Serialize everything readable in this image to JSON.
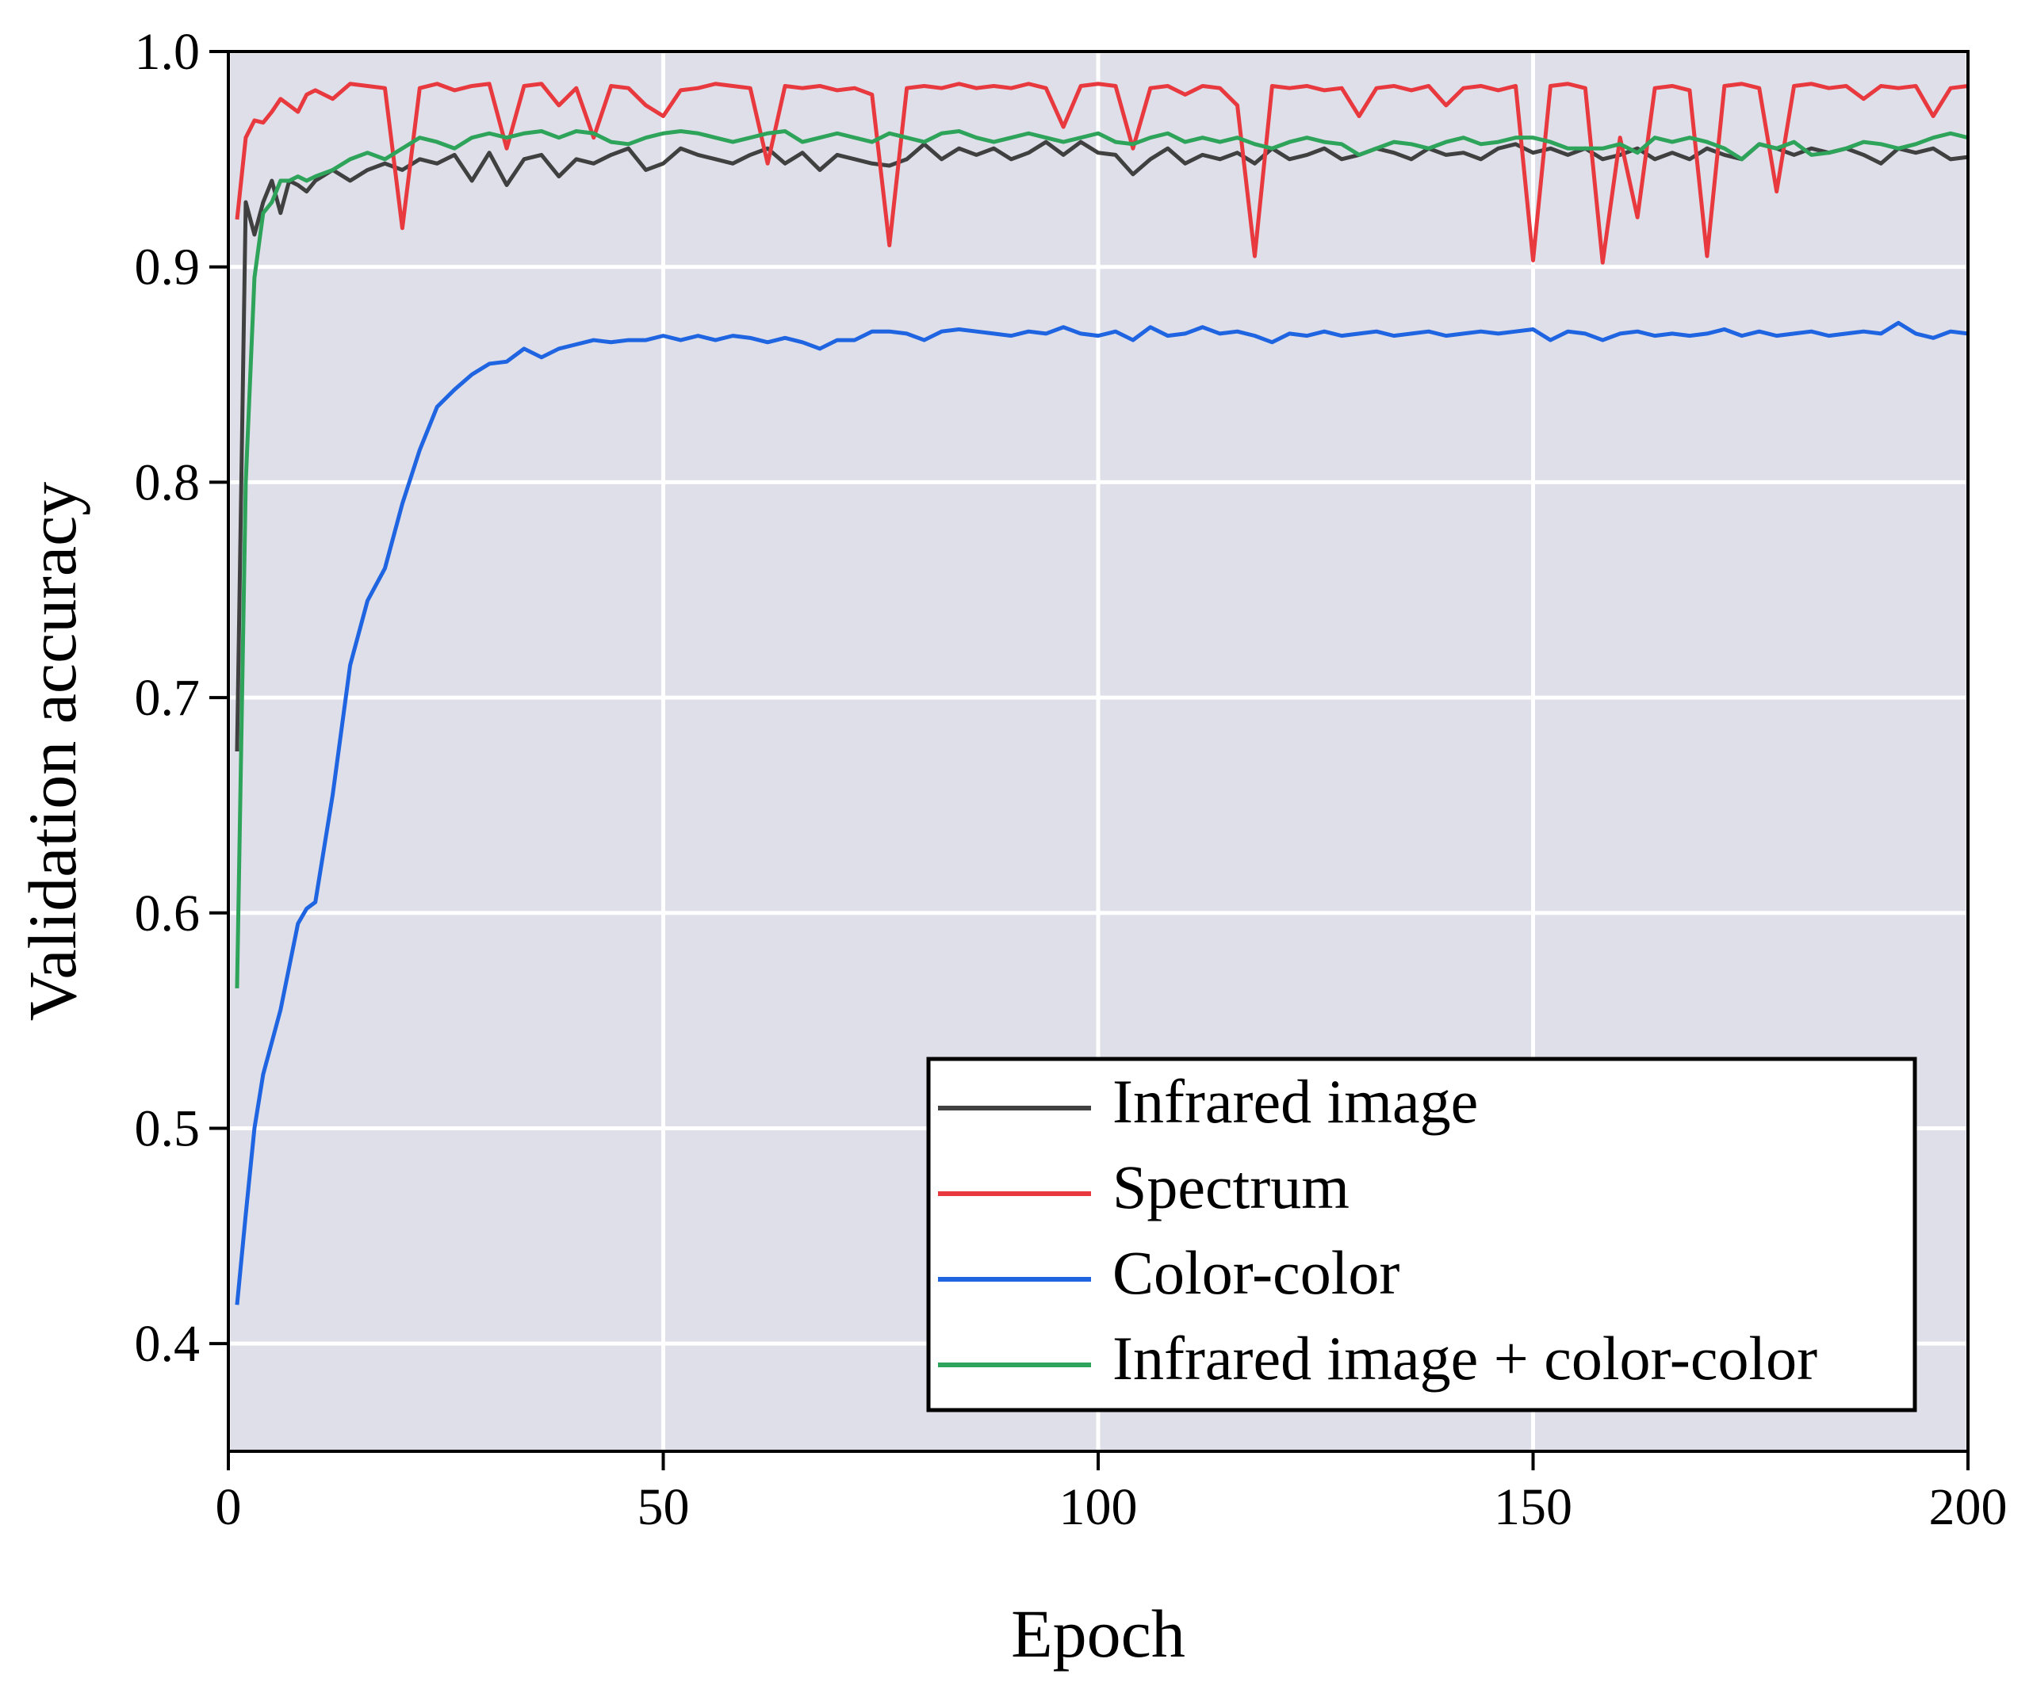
{
  "chart_data": {
    "type": "line",
    "xlabel": "Epoch",
    "ylabel": "Validation accuracy",
    "xlim": [
      0,
      200
    ],
    "xticks": [
      0,
      50,
      100,
      150,
      200
    ],
    "ylim": [
      0.35,
      1.0
    ],
    "yticks": [
      0.4,
      0.5,
      0.6,
      0.7,
      0.8,
      0.9,
      {
        "value": 1,
        "label": "1.0"
      }
    ],
    "grid": true,
    "legend": "lower right",
    "background": "#dfdfea",
    "x": [
      1,
      2,
      3,
      4,
      5,
      6,
      7,
      8,
      9,
      10,
      12,
      14,
      16,
      18,
      20,
      22,
      24,
      26,
      28,
      30,
      32,
      34,
      36,
      38,
      40,
      42,
      44,
      46,
      48,
      50,
      52,
      54,
      56,
      58,
      60,
      62,
      64,
      66,
      68,
      70,
      72,
      74,
      76,
      78,
      80,
      82,
      84,
      86,
      88,
      90,
      92,
      94,
      96,
      98,
      100,
      102,
      104,
      106,
      108,
      110,
      112,
      114,
      116,
      118,
      120,
      122,
      124,
      126,
      128,
      130,
      132,
      134,
      136,
      138,
      140,
      142,
      144,
      146,
      148,
      150,
      152,
      154,
      156,
      158,
      160,
      162,
      164,
      166,
      168,
      170,
      172,
      174,
      176,
      178,
      180,
      182,
      184,
      186,
      188,
      190,
      192,
      194,
      196,
      198,
      200
    ],
    "series": [
      {
        "name": "Infrared image",
        "color": "#404040",
        "values": [
          0.675,
          0.93,
          0.915,
          0.93,
          0.94,
          0.925,
          0.94,
          0.938,
          0.935,
          0.94,
          0.945,
          0.94,
          0.945,
          0.948,
          0.945,
          0.95,
          0.948,
          0.952,
          0.94,
          0.953,
          0.938,
          0.95,
          0.952,
          0.942,
          0.95,
          0.948,
          0.952,
          0.955,
          0.945,
          0.948,
          0.955,
          0.952,
          0.95,
          0.948,
          0.952,
          0.955,
          0.948,
          0.953,
          0.945,
          0.952,
          0.95,
          0.948,
          0.947,
          0.95,
          0.957,
          0.95,
          0.955,
          0.952,
          0.955,
          0.95,
          0.953,
          0.958,
          0.952,
          0.958,
          0.953,
          0.952,
          0.943,
          0.95,
          0.955,
          0.948,
          0.952,
          0.95,
          0.953,
          0.948,
          0.955,
          0.95,
          0.952,
          0.955,
          0.95,
          0.952,
          0.955,
          0.953,
          0.95,
          0.955,
          0.952,
          0.953,
          0.95,
          0.955,
          0.957,
          0.953,
          0.955,
          0.952,
          0.955,
          0.95,
          0.952,
          0.955,
          0.95,
          0.953,
          0.95,
          0.955,
          0.952,
          0.95,
          0.957,
          0.955,
          0.952,
          0.955,
          0.953,
          0.955,
          0.952,
          0.948,
          0.955,
          0.953,
          0.955,
          0.95,
          0.951
        ]
      },
      {
        "name": "Spectrum",
        "color": "#e8393e",
        "values": [
          0.922,
          0.96,
          0.968,
          0.967,
          0.972,
          0.978,
          0.975,
          0.972,
          0.98,
          0.982,
          0.978,
          0.985,
          0.984,
          0.983,
          0.918,
          0.983,
          0.985,
          0.982,
          0.984,
          0.985,
          0.955,
          0.984,
          0.985,
          0.975,
          0.983,
          0.96,
          0.984,
          0.983,
          0.975,
          0.97,
          0.982,
          0.983,
          0.985,
          0.984,
          0.983,
          0.948,
          0.984,
          0.983,
          0.984,
          0.982,
          0.983,
          0.98,
          0.91,
          0.983,
          0.984,
          0.983,
          0.985,
          0.983,
          0.984,
          0.983,
          0.985,
          0.983,
          0.965,
          0.984,
          0.985,
          0.984,
          0.955,
          0.983,
          0.984,
          0.98,
          0.984,
          0.983,
          0.975,
          0.905,
          0.984,
          0.983,
          0.984,
          0.982,
          0.983,
          0.97,
          0.983,
          0.984,
          0.982,
          0.984,
          0.975,
          0.983,
          0.984,
          0.982,
          0.984,
          0.903,
          0.984,
          0.985,
          0.983,
          0.902,
          0.96,
          0.923,
          0.983,
          0.984,
          0.982,
          0.905,
          0.984,
          0.985,
          0.983,
          0.935,
          0.984,
          0.985,
          0.983,
          0.984,
          0.978,
          0.984,
          0.983,
          0.984,
          0.97,
          0.983,
          0.984
        ]
      },
      {
        "name": "Color-color",
        "color": "#1f64e0",
        "values": [
          0.418,
          0.46,
          0.5,
          0.525,
          0.54,
          0.555,
          0.575,
          0.595,
          0.602,
          0.605,
          0.655,
          0.715,
          0.745,
          0.76,
          0.79,
          0.815,
          0.835,
          0.843,
          0.85,
          0.855,
          0.856,
          0.862,
          0.858,
          0.862,
          0.864,
          0.866,
          0.865,
          0.866,
          0.866,
          0.868,
          0.866,
          0.868,
          0.866,
          0.868,
          0.867,
          0.865,
          0.867,
          0.865,
          0.862,
          0.866,
          0.866,
          0.87,
          0.87,
          0.869,
          0.866,
          0.87,
          0.871,
          0.87,
          0.869,
          0.868,
          0.87,
          0.869,
          0.872,
          0.869,
          0.868,
          0.87,
          0.866,
          0.872,
          0.868,
          0.869,
          0.872,
          0.869,
          0.87,
          0.868,
          0.865,
          0.869,
          0.868,
          0.87,
          0.868,
          0.869,
          0.87,
          0.868,
          0.869,
          0.87,
          0.868,
          0.869,
          0.87,
          0.869,
          0.87,
          0.871,
          0.866,
          0.87,
          0.869,
          0.866,
          0.869,
          0.87,
          0.868,
          0.869,
          0.868,
          0.869,
          0.871,
          0.868,
          0.87,
          0.868,
          0.869,
          0.87,
          0.868,
          0.869,
          0.87,
          0.869,
          0.874,
          0.869,
          0.867,
          0.87,
          0.869
        ]
      },
      {
        "name": "Infrared image + color-color",
        "color": "#2ea35a",
        "values": [
          0.565,
          0.8,
          0.895,
          0.925,
          0.93,
          0.94,
          0.94,
          0.942,
          0.94,
          0.942,
          0.945,
          0.95,
          0.953,
          0.95,
          0.955,
          0.96,
          0.958,
          0.955,
          0.96,
          0.962,
          0.96,
          0.962,
          0.963,
          0.96,
          0.963,
          0.962,
          0.958,
          0.957,
          0.96,
          0.962,
          0.963,
          0.962,
          0.96,
          0.958,
          0.96,
          0.962,
          0.963,
          0.958,
          0.96,
          0.962,
          0.96,
          0.958,
          0.962,
          0.96,
          0.958,
          0.962,
          0.963,
          0.96,
          0.958,
          0.96,
          0.962,
          0.96,
          0.958,
          0.96,
          0.962,
          0.958,
          0.957,
          0.96,
          0.962,
          0.958,
          0.96,
          0.958,
          0.96,
          0.957,
          0.955,
          0.958,
          0.96,
          0.958,
          0.957,
          0.952,
          0.955,
          0.958,
          0.957,
          0.955,
          0.958,
          0.96,
          0.957,
          0.958,
          0.96,
          0.96,
          0.958,
          0.955,
          0.955,
          0.955,
          0.957,
          0.953,
          0.96,
          0.958,
          0.96,
          0.958,
          0.955,
          0.95,
          0.957,
          0.955,
          0.958,
          0.952,
          0.953,
          0.955,
          0.958,
          0.957,
          0.955,
          0.957,
          0.96,
          0.962,
          0.96
        ]
      }
    ]
  }
}
